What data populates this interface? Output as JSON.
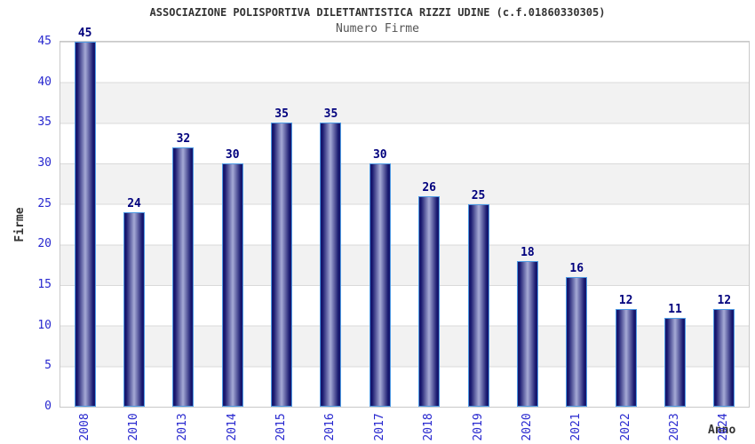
{
  "chart_data": {
    "type": "bar",
    "title": "ASSOCIAZIONE POLISPORTIVA DILETTANTISTICA RIZZI UDINE (c.f.01860330305)",
    "subtitle": "Numero Firme",
    "xlabel": "Anno",
    "ylabel": "Firme",
    "categories": [
      "2008",
      "2010",
      "2013",
      "2014",
      "2015",
      "2016",
      "2017",
      "2018",
      "2019",
      "2020",
      "2021",
      "2022",
      "2023",
      "2024"
    ],
    "values": [
      45,
      24,
      32,
      30,
      35,
      35,
      30,
      26,
      25,
      18,
      16,
      12,
      11,
      12
    ],
    "ylim": [
      0,
      45
    ],
    "ytick_step": 5,
    "bar_value_labels_shown": true,
    "legend": "none",
    "grid": "horizontal-bands-alternating",
    "colors": {
      "bar_edge_dark": "#17176e",
      "bar_center_light": "#a6aad6",
      "bar_outline": "#4f9be4",
      "value_label": "#00007d",
      "tick_label": "#2828cf",
      "band_alt": "#f2f2f2",
      "gridline": "#dadada",
      "plot_border": "#c8c8c8",
      "title": "#333333",
      "subtitle": "#555555",
      "axis_title": "#333333"
    }
  }
}
